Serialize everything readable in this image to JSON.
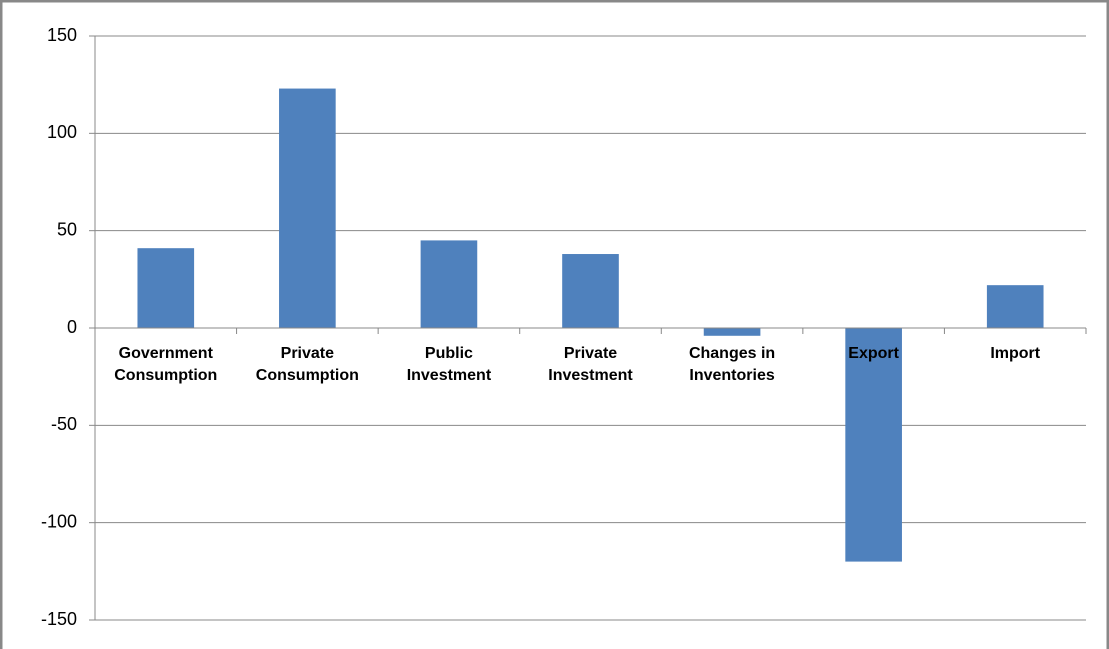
{
  "chart_data": {
    "type": "bar",
    "categories": [
      "Government Consumption",
      "Private Consumption",
      "Public Investment",
      "Private Investment",
      "Changes in Inventories",
      "Export",
      "Import"
    ],
    "values": [
      41,
      123,
      45,
      38,
      -4,
      -120,
      22
    ],
    "color": "#4f81bd",
    "ylim": [
      -150,
      150
    ],
    "yticks": [
      -150,
      -100,
      -50,
      0,
      50,
      100,
      150
    ],
    "grid": true
  }
}
